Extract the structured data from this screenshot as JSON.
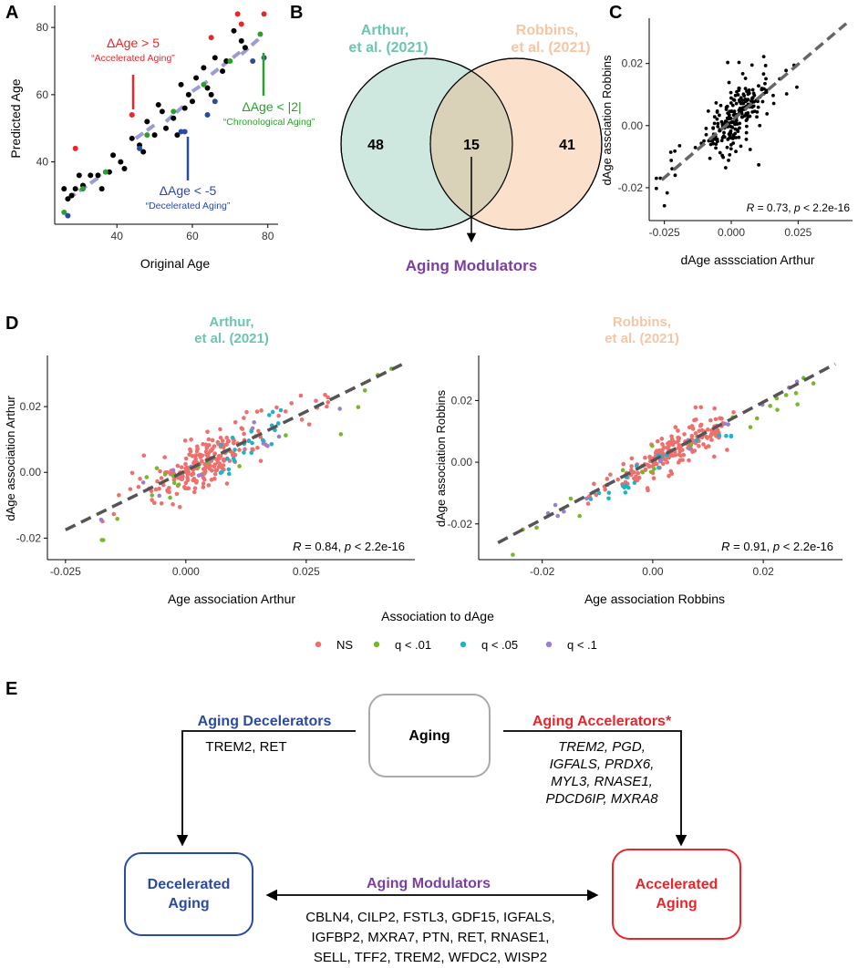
{
  "panels": {
    "a": "A",
    "b": "B",
    "c": "C",
    "d": "D",
    "e": "E"
  },
  "colors": {
    "black": "#000000",
    "accelerated": "#e8262b",
    "chronological": "#2ca02c",
    "decelerated": "#2b4aa3",
    "fit_line": "#9b9bd6",
    "arthur": "#6cc5b0",
    "arthur_fill": "#cfe8df",
    "robbins": "#f5c6a5",
    "robbins_fill": "#fbe1cc",
    "overlap_fill": "#d9d2b8",
    "modulators": "#7b3fa0",
    "ns": "#ef6f6c",
    "q01": "#77b82a",
    "q05": "#20b2c8",
    "q1": "#9b7fd0",
    "dash": "#555555",
    "box_gray": "#aaaaaa"
  },
  "panel_a": {
    "xlabel": "Original Age",
    "ylabel": "Predicted Age",
    "xticks": [
      "40",
      "60",
      "80"
    ],
    "yticks": [
      "40",
      "60",
      "80"
    ],
    "xlim": [
      24,
      82
    ],
    "ylim": [
      22,
      86
    ],
    "label_accel_1": "ΔAge > 5",
    "label_accel_2": "“Accelerated Aging”",
    "label_chrono_1": "ΔAge < |2|",
    "label_chrono_2": "“Chronological Aging”",
    "label_decel_1": "ΔAge < -5",
    "label_decel_2": "“Decelerated Aging”"
  },
  "panel_b": {
    "left_title_1": "Arthur,",
    "left_title_2": "et al. (2021)",
    "right_title_1": "Robbins,",
    "right_title_2": "et al. (2021)",
    "left_count": "48",
    "overlap_count": "15",
    "right_count": "41",
    "modulators": "Aging Modulators"
  },
  "panel_c": {
    "xlabel": "dAge asssciation Arthur",
    "ylabel": "dAge assciation Robbins",
    "xticks": [
      "-0.025",
      "0.000",
      "0.025"
    ],
    "yticks": [
      "-0.02",
      "0.00",
      "0.02"
    ],
    "xlim": [
      -0.03,
      0.045
    ],
    "ylim": [
      -0.03,
      0.034
    ],
    "stat_r": "R",
    "stat_mid": " = 0.73, ",
    "stat_p": "p",
    "stat_end": " < 2.2e-16"
  },
  "panel_d_left": {
    "title_1": "Arthur,",
    "title_2": "et al. (2021)",
    "xlabel": "Age association Arthur",
    "ylabel": "dAge association Arthur",
    "xticks": [
      "-0.025",
      "0.000",
      "0.025"
    ],
    "yticks": [
      "-0.02",
      "0.00",
      "0.02"
    ],
    "xlim": [
      -0.028,
      0.047
    ],
    "ylim": [
      -0.026,
      0.035
    ],
    "stat_r": "R",
    "stat_mid": " = 0.84, ",
    "stat_p": "p",
    "stat_end": " < 2.2e-16"
  },
  "panel_d_right": {
    "title_1": "Robbins,",
    "title_2": "et al. (2021)",
    "xlabel": "Age association Robbins",
    "ylabel": "dAge association Robbins",
    "xticks": [
      "-0.02",
      "0.00",
      "0.02"
    ],
    "yticks": [
      "-0.02",
      "0.00",
      "0.02"
    ],
    "xlim": [
      -0.031,
      0.034
    ],
    "ylim": [
      -0.031,
      0.034
    ],
    "stat_r": "R",
    "stat_mid": " = 0.91, ",
    "stat_p": "p",
    "stat_end": " < 2.2e-16"
  },
  "legend": {
    "title": "Association to dAge",
    "items": [
      "NS",
      "q < .01",
      "q < .05",
      "q < .1"
    ]
  },
  "panel_e": {
    "aging": "Aging",
    "decelerators_title": "Aging Decelerators",
    "decelerators_genes": "TREM2, RET",
    "accelerators_title": "Aging Accelerators*",
    "accelerators_genes": [
      "TREM2, PGD,",
      "IGFALS, PRDX6,",
      "MYL3, RNASE1,",
      "PDCD6IP, MXRA8"
    ],
    "decel_box_1": "Decelerated",
    "decel_box_2": "Aging",
    "accel_box_1": "Accelerated",
    "accel_box_2": "Aging",
    "modulators_title": "Aging Modulators",
    "modulators_genes": [
      "CBLN4, CILP2, FSTL3, GDF15, IGFALS,",
      "IGFBP2, MXRA7, PTN, RET, RNASE1,",
      "SELL, TFF2, TREM2, WFDC2, WISP2"
    ]
  },
  "chart_data": [
    {
      "panel": "A",
      "type": "scatter",
      "xlabel": "Original Age",
      "ylabel": "Predicted Age",
      "xlim": [
        24,
        82
      ],
      "ylim": [
        22,
        86
      ],
      "series": [
        {
          "name": "black",
          "points": [
            [
              26,
              32
            ],
            [
              27,
              29
            ],
            [
              28,
              30
            ],
            [
              29,
              32
            ],
            [
              30,
              36
            ],
            [
              31,
              33
            ],
            [
              33,
              36
            ],
            [
              35,
              36
            ],
            [
              36,
              32
            ],
            [
              38,
              37
            ],
            [
              39,
              42
            ],
            [
              41,
              40
            ],
            [
              42,
              38
            ],
            [
              44,
              47
            ],
            [
              46,
              45
            ],
            [
              47,
              43
            ],
            [
              48,
              52
            ],
            [
              50,
              48
            ],
            [
              51,
              57
            ],
            [
              52,
              55
            ],
            [
              53,
              50
            ],
            [
              55,
              53
            ],
            [
              56,
              48
            ],
            [
              57,
              63
            ],
            [
              58,
              56
            ],
            [
              59,
              60
            ],
            [
              60,
              58
            ],
            [
              61,
              65
            ],
            [
              63,
              68
            ],
            [
              64,
              62
            ],
            [
              65,
              60
            ],
            [
              66,
              71
            ],
            [
              68,
              67
            ],
            [
              69,
              70
            ],
            [
              71,
              79
            ],
            [
              73,
              76
            ],
            [
              74,
              74
            ]
          ]
        },
        {
          "name": "accelerated",
          "points": [
            [
              29,
              44
            ],
            [
              44,
              54
            ],
            [
              65,
              77
            ],
            [
              72,
              84
            ],
            [
              73,
              81
            ],
            [
              79,
              84
            ]
          ]
        },
        {
          "name": "chronological",
          "points": [
            [
              26,
              25
            ],
            [
              31,
              32
            ],
            [
              37,
              37
            ],
            [
              48,
              48
            ],
            [
              55,
              55
            ],
            [
              63,
              63
            ],
            [
              70,
              70
            ],
            [
              78,
              78
            ]
          ]
        },
        {
          "name": "decelerated",
          "points": [
            [
              27,
              24
            ],
            [
              46,
              44
            ],
            [
              57,
              49
            ],
            [
              58,
              49
            ],
            [
              64,
              54
            ],
            [
              76,
              70
            ],
            [
              79,
              71
            ],
            [
              66,
              58
            ]
          ]
        },
        {
          "name": "fit",
          "segments": [
            [
              [
                27,
                29
              ],
              [
                36,
                36
              ]
            ],
            [
              [
                45,
                47
              ],
              [
                50,
                51
              ]
            ],
            [
              [
                53,
                52
              ],
              [
                58,
                57
              ]
            ],
            [
              [
                60,
                61
              ],
              [
                64,
                64
              ]
            ],
            [
              [
                65,
                66
              ],
              [
                73,
                73
              ]
            ],
            [
              [
                73,
                72
              ],
              [
                78,
                77
              ]
            ]
          ]
        }
      ]
    },
    {
      "panel": "B",
      "type": "venn",
      "sets": [
        {
          "name": "Arthur, et al. (2021)",
          "only": 48
        },
        {
          "name": "Robbins, et al. (2021)",
          "only": 41
        }
      ],
      "overlap": 15,
      "overlap_label": "Aging Modulators"
    },
    {
      "panel": "C",
      "type": "scatter",
      "xlabel": "dAge asssciation Arthur",
      "ylabel": "dAge assciation Robbins",
      "r": 0.73,
      "p": "< 2.2e-16",
      "n": 240,
      "seed": 7,
      "fit": {
        "slope": 0.73,
        "intercept": 0.0015
      },
      "noise": 0.006
    },
    {
      "panel": "D-left",
      "type": "scatter",
      "title": "Arthur, et al. (2021)",
      "xlabel": "Age association Arthur",
      "ylabel": "dAge association Arthur",
      "r": 0.84,
      "p": "< 2.2e-16",
      "fit": {
        "slope": 0.72,
        "intercept": 0.0005
      },
      "groups": [
        {
          "name": "NS",
          "n": 230,
          "x_range": [
            -0.018,
            0.03
          ],
          "noise": 0.004,
          "seed": 11
        },
        {
          "name": "q < .01",
          "n": 22,
          "x_range": [
            -0.025,
            0.045
          ],
          "noise": 0.005,
          "seed": 12
        },
        {
          "name": "q < .05",
          "n": 25,
          "x_range": [
            0.005,
            0.02
          ],
          "noise": 0.003,
          "seed": 13
        },
        {
          "name": "q < .1",
          "n": 14,
          "x_range": [
            -0.02,
            0.04
          ],
          "noise": 0.004,
          "seed": 14
        }
      ]
    },
    {
      "panel": "D-right",
      "type": "scatter",
      "title": "Robbins, et al. (2021)",
      "xlabel": "Age association Robbins",
      "ylabel": "dAge association Robbins",
      "r": 0.91,
      "p": "< 2.2e-16",
      "fit": {
        "slope": 0.95,
        "intercept": 0.0005
      },
      "groups": [
        {
          "name": "NS",
          "n": 200,
          "x_range": [
            -0.012,
            0.012
          ],
          "noise": 0.003,
          "seed": 21
        },
        {
          "name": "q < .01",
          "n": 22,
          "x_range": [
            -0.03,
            0.032
          ],
          "noise": 0.003,
          "seed": 22
        },
        {
          "name": "q < .05",
          "n": 22,
          "x_range": [
            -0.012,
            0.016
          ],
          "noise": 0.002,
          "seed": 23
        },
        {
          "name": "q < .1",
          "n": 14,
          "x_range": [
            -0.02,
            0.028
          ],
          "noise": 0.002,
          "seed": 24
        }
      ]
    }
  ]
}
